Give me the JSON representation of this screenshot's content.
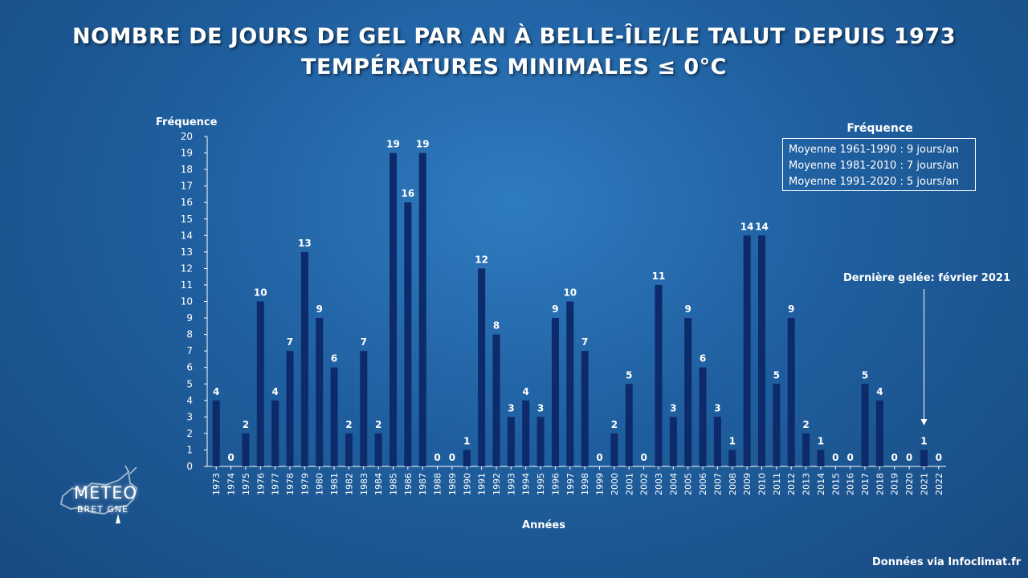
{
  "chart_data": {
    "type": "bar",
    "title": "NOMBRE DE JOURS DE GEL PAR AN À BELLE-ÎLE/LE TALUT DEPUIS 1973",
    "subtitle": "TEMPÉRATURES MINIMALES ≤ 0°C",
    "ylabel": "Fréquence",
    "xlabel": "Années",
    "ylim": [
      0,
      20
    ],
    "categories": [
      "1973",
      "1974",
      "1975",
      "1976",
      "1977",
      "1978",
      "1979",
      "1980",
      "1981",
      "1982",
      "1983",
      "1984",
      "1985",
      "1986",
      "1987",
      "1988",
      "1989",
      "1990",
      "1991",
      "1992",
      "1993",
      "1994",
      "1995",
      "1996",
      "1997",
      "1998",
      "1999",
      "2000",
      "2001",
      "2002",
      "2003",
      "2004",
      "2005",
      "2006",
      "2007",
      "2008",
      "2009",
      "2010",
      "2011",
      "2012",
      "2013",
      "2014",
      "2015",
      "2016",
      "2017",
      "2018",
      "2019",
      "2020",
      "2021",
      "2022"
    ],
    "values": [
      4,
      0,
      2,
      10,
      4,
      7,
      13,
      9,
      6,
      2,
      7,
      2,
      19,
      16,
      19,
      0,
      0,
      1,
      12,
      8,
      3,
      4,
      3,
      9,
      10,
      7,
      0,
      2,
      5,
      0,
      11,
      3,
      9,
      6,
      3,
      1,
      14,
      14,
      5,
      9,
      2,
      1,
      0,
      0,
      5,
      4,
      0,
      0,
      1,
      0
    ],
    "bar_color": "#0d2a6b",
    "grid": false,
    "legend": {
      "title": "Fréquence",
      "placement": "top-right",
      "entries": [
        "Moyenne 1961-1990  : 9 jours/an",
        "Moyenne 1981-2010 : 7 jours/an",
        "Moyenne 1991-2020 : 5 jours/an"
      ]
    },
    "annotation": {
      "text": "Dernière gelée: février 2021",
      "target_category": "2021"
    }
  },
  "footer": {
    "source": "Données via Infoclimat.fr"
  },
  "logo": {
    "line1": "METEO",
    "line2": "BRET   GNE"
  }
}
